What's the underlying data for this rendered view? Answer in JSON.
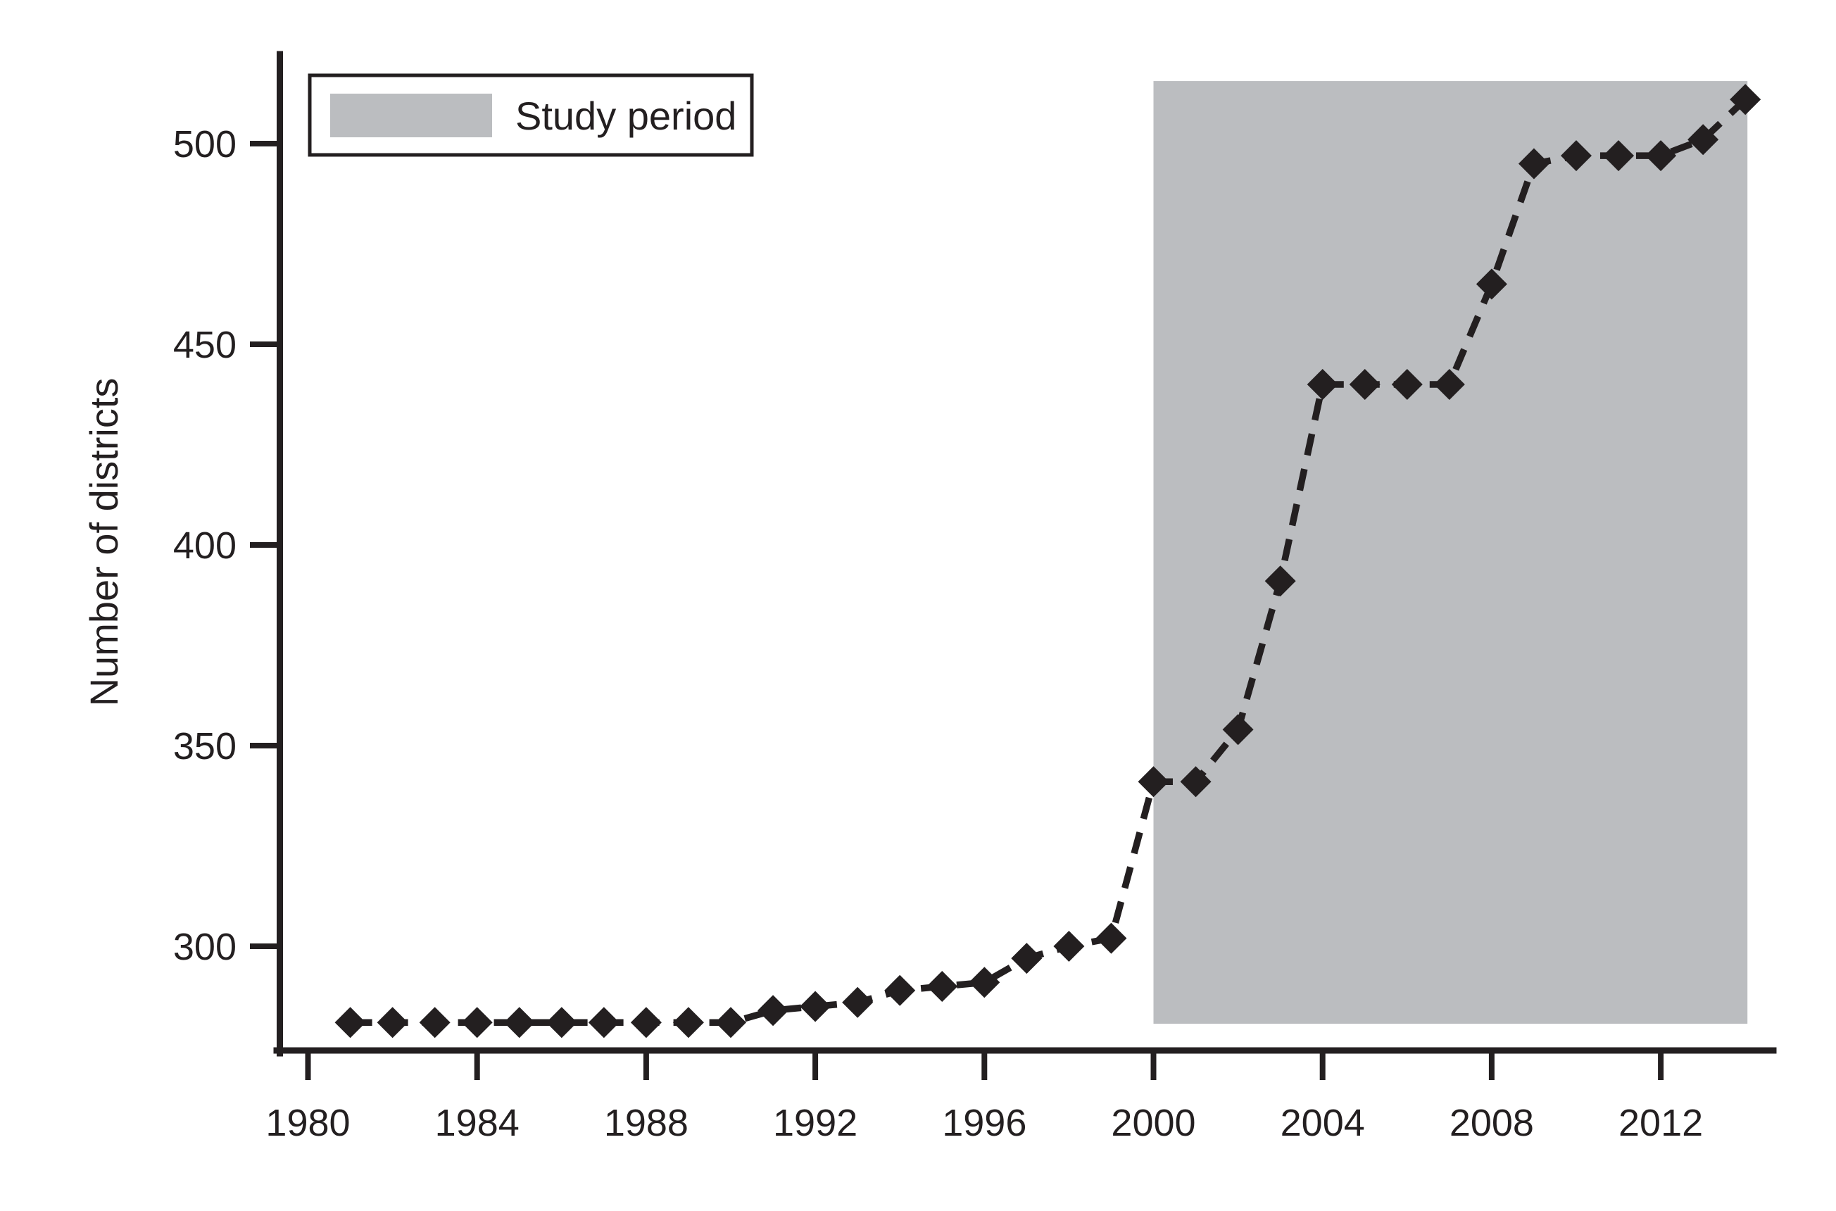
{
  "figure": {
    "colors": {
      "ink": "#231f20",
      "band": "#bbbdc0",
      "background": "#ffffff"
    }
  },
  "legend": {
    "label": "Study period"
  },
  "chart_data": {
    "type": "line",
    "title": "",
    "xlabel": "",
    "ylabel": "Number of districts",
    "series": [
      {
        "name": "Number of districts",
        "x": [
          1981,
          1982,
          1983,
          1984,
          1985,
          1986,
          1987,
          1988,
          1989,
          1990,
          1991,
          1992,
          1993,
          1994,
          1995,
          1996,
          1997,
          1998,
          1999,
          2000,
          2001,
          2002,
          2003,
          2004,
          2005,
          2006,
          2007,
          2008,
          2009,
          2010,
          2011,
          2012,
          2013,
          2014
        ],
        "y": [
          281,
          281,
          281,
          281,
          281,
          281,
          281,
          281,
          281,
          281,
          284,
          285,
          286,
          289,
          290,
          291,
          297,
          300,
          302,
          341,
          341,
          354,
          391,
          440,
          440,
          440,
          440,
          465,
          495,
          497,
          497,
          497,
          501,
          511
        ]
      }
    ],
    "xticks": [
      1980,
      1984,
      1988,
      1992,
      1996,
      2000,
      2004,
      2008,
      2012
    ],
    "yticks": [
      300,
      350,
      400,
      450,
      500
    ],
    "xlim": [
      1979.3,
      2014.7
    ],
    "ylim": [
      274,
      522
    ],
    "grid": false,
    "marker": "diamond",
    "line_style": "dashed",
    "legend_position": "top-left",
    "study_band": {
      "label": "Study period",
      "x_from": 2000,
      "x_to": 2014.05,
      "value_from": 280.7,
      "value_to": 515.6
    }
  }
}
